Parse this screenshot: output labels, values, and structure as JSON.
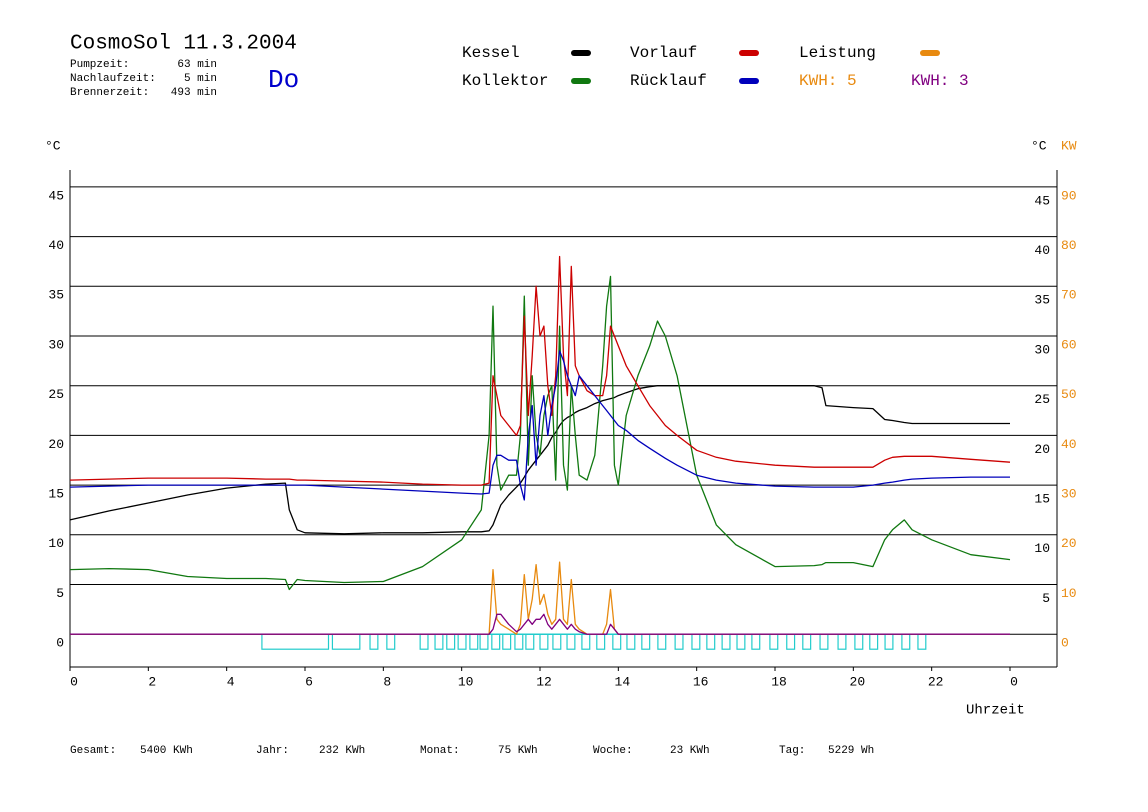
{
  "chart_data": {
    "type": "line",
    "title": "CosmoSol 11.3.2004",
    "info": [
      {
        "label": "Pumpzeit:",
        "value": "63 min"
      },
      {
        "label": "Nachlaufzeit:",
        "value": "5 min"
      },
      {
        "label": "Brennerzeit:",
        "value": "493 min"
      }
    ],
    "day": "Do",
    "y_unit": "°C",
    "y2_unit": "KW",
    "x_label": "Uhrzeit",
    "x": [
      0,
      1,
      2,
      3,
      4,
      5,
      5.5,
      5.6,
      5.8,
      6,
      7,
      8,
      9,
      10,
      10.5,
      10.7,
      10.8,
      10.9,
      11,
      11.2,
      11.4,
      11.5,
      11.6,
      11.7,
      11.8,
      11.9,
      12,
      12.1,
      12.2,
      12.3,
      12.4,
      12.5,
      12.6,
      12.7,
      12.8,
      12.9,
      13,
      13.2,
      13.4,
      13.6,
      13.7,
      13.8,
      13.9,
      14,
      14.2,
      14.5,
      14.8,
      15,
      15.2,
      15.5,
      16,
      16.5,
      17,
      18,
      19,
      19.2,
      19.3,
      20,
      20.5,
      20.8,
      21,
      21.3,
      21.5,
      22,
      23,
      24
    ],
    "xlim": [
      0,
      25.2
    ],
    "xticks": [
      0,
      2,
      4,
      6,
      8,
      10,
      12,
      14,
      16,
      18,
      20,
      22,
      {
        "value": 24,
        "label": "0"
      }
    ],
    "ylim": [
      -3.3,
      46.7
    ],
    "yticks": [
      0,
      5,
      10,
      15,
      20,
      25,
      30,
      35,
      40,
      45
    ],
    "y2lim": [
      -6.6,
      93.4
    ],
    "y2ticks": [
      0,
      10,
      20,
      30,
      40,
      50,
      60,
      70,
      80,
      90
    ],
    "grid": true,
    "series": [
      {
        "name": "Kessel",
        "color": "#000000",
        "values": [
          11.5,
          12.4,
          13.2,
          14,
          14.7,
          15.1,
          15.2,
          12.5,
          10.5,
          10.2,
          10.1,
          10.2,
          10.2,
          10.3,
          10.3,
          10.4,
          11,
          12,
          13,
          14,
          14.8,
          15.2,
          15.8,
          16.5,
          17,
          17.5,
          18,
          18.5,
          19,
          19.8,
          20.3,
          21,
          21.5,
          21.8,
          22,
          22.3,
          22.5,
          22.8,
          23.2,
          23.5,
          23.6,
          23.7,
          23.8,
          24,
          24.3,
          24.7,
          24.9,
          25,
          25,
          25,
          25,
          25,
          25,
          25,
          25,
          24.8,
          23,
          22.8,
          22.7,
          21.6,
          21.5,
          21.3,
          21.2,
          21.2,
          21.2,
          21.2
        ]
      },
      {
        "name": "Kollektor",
        "color": "#107810",
        "values": [
          6.5,
          6.6,
          6.5,
          5.8,
          5.6,
          5.6,
          5.5,
          4.5,
          5.5,
          5.4,
          5.2,
          5.3,
          6.8,
          9.5,
          12.5,
          20,
          33,
          17,
          14.5,
          16,
          16,
          20,
          34,
          17,
          26,
          20,
          18,
          22,
          24,
          25,
          15.5,
          31,
          17,
          14.5,
          25,
          20,
          16,
          15.5,
          18,
          27,
          33,
          36,
          17,
          15,
          22,
          26,
          29,
          31.5,
          30,
          26,
          16,
          11,
          9,
          6.8,
          6.9,
          7,
          7.2,
          7.2,
          6.8,
          9.5,
          10.5,
          11.5,
          10.5,
          9.5,
          8,
          7.5
        ]
      },
      {
        "name": "Vorlauf",
        "color": "#cc0000",
        "values": [
          15.5,
          15.6,
          15.7,
          15.7,
          15.7,
          15.6,
          15.6,
          15.6,
          15.5,
          15.5,
          15.4,
          15.3,
          15.1,
          15,
          15,
          15.2,
          26,
          24,
          22,
          21,
          20,
          21,
          32,
          22,
          28,
          35,
          30,
          31,
          25,
          22,
          26,
          38,
          28,
          24,
          37,
          27,
          26,
          24.5,
          24,
          24,
          26,
          31,
          30,
          29,
          27,
          25,
          23,
          22,
          21,
          20,
          18.5,
          17.8,
          17.4,
          17,
          16.8,
          16.8,
          16.8,
          16.8,
          16.8,
          17.5,
          17.8,
          17.9,
          17.9,
          17.9,
          17.6,
          17.3
        ]
      },
      {
        "name": "Rücklauf",
        "color": "#0000bb",
        "values": [
          14.8,
          14.9,
          15,
          15,
          15,
          15,
          15,
          15,
          15,
          15,
          14.8,
          14.6,
          14.4,
          14.2,
          14.1,
          14.2,
          17,
          18,
          18,
          17.5,
          17.5,
          15,
          13.5,
          20,
          23,
          17,
          22,
          24,
          20,
          23,
          25,
          28.5,
          27.5,
          26,
          25,
          24,
          26,
          25,
          24,
          23,
          22.5,
          22,
          21.5,
          21,
          20.5,
          19.5,
          18.7,
          18.2,
          17.7,
          17,
          16,
          15.5,
          15.2,
          14.9,
          14.8,
          14.8,
          14.8,
          14.8,
          15,
          15.2,
          15.3,
          15.5,
          15.6,
          15.7,
          15.8,
          15.8
        ]
      },
      {
        "name": "Leistung",
        "color": "#e88a10",
        "axis": "y2",
        "values": [
          0,
          0,
          0,
          0,
          0,
          0,
          0,
          0,
          0,
          0,
          0,
          0,
          0,
          0,
          0,
          0,
          13,
          3,
          2,
          1,
          0,
          2,
          12,
          3,
          7,
          14,
          6,
          8,
          4,
          2,
          3,
          14.5,
          3,
          2,
          11,
          2,
          1,
          0,
          0,
          0,
          2,
          9,
          1,
          0,
          0,
          0,
          0,
          0,
          0,
          0,
          0,
          0,
          0,
          0,
          0,
          0,
          0,
          0,
          0,
          0,
          0,
          0,
          0,
          0,
          0,
          0
        ]
      },
      {
        "color": "#800080",
        "axis": "y2",
        "values": [
          0,
          0,
          0,
          0,
          0,
          0,
          0,
          0,
          0,
          0,
          0,
          0,
          0,
          0,
          0,
          0,
          1,
          4,
          4,
          2,
          0.5,
          1,
          2,
          3,
          2,
          3,
          3,
          4,
          2,
          1,
          2,
          3,
          2,
          1,
          2,
          1,
          0.5,
          0,
          0,
          0,
          0,
          2,
          1,
          0,
          0,
          0,
          0,
          0,
          0,
          0,
          0,
          0,
          0,
          0,
          0,
          0,
          0,
          0,
          0,
          0,
          0,
          0,
          0,
          0,
          0,
          0
        ]
      }
    ],
    "legend_notes": [
      {
        "text": "KWH: 5",
        "color": "#e88a10"
      },
      {
        "text": "KWH: 3",
        "color": "#800080"
      }
    ],
    "burner": {
      "color": "#22cccc",
      "periods": [
        [
          4.9,
          6.6
        ],
        [
          6.7,
          7.4
        ],
        [
          7.66,
          7.86
        ],
        [
          8.09,
          8.29
        ],
        [
          8.94,
          9.14
        ],
        [
          9.32,
          9.52
        ],
        [
          9.62,
          9.82
        ],
        [
          9.91,
          10.11
        ],
        [
          10.21,
          10.41
        ],
        [
          10.47,
          10.67
        ],
        [
          10.77,
          10.97
        ],
        [
          11.05,
          11.25
        ],
        [
          11.36,
          11.56
        ],
        [
          11.64,
          11.84
        ],
        [
          12.0,
          12.2
        ],
        [
          12.33,
          12.53
        ],
        [
          12.69,
          12.89
        ],
        [
          13.07,
          13.27
        ],
        [
          13.45,
          13.65
        ],
        [
          13.86,
          14.06
        ],
        [
          14.22,
          14.42
        ],
        [
          14.6,
          14.8
        ],
        [
          15.01,
          15.21
        ],
        [
          15.45,
          15.65
        ],
        [
          15.88,
          16.08
        ],
        [
          16.26,
          16.46
        ],
        [
          16.65,
          16.85
        ],
        [
          17.03,
          17.23
        ],
        [
          17.41,
          17.61
        ],
        [
          17.87,
          18.07
        ],
        [
          18.3,
          18.5
        ],
        [
          18.71,
          18.91
        ],
        [
          19.15,
          19.35
        ],
        [
          19.61,
          19.81
        ],
        [
          20.04,
          20.24
        ],
        [
          20.42,
          20.62
        ],
        [
          20.81,
          21.01
        ],
        [
          21.24,
          21.44
        ],
        [
          21.65,
          21.85
        ]
      ]
    },
    "footer": [
      {
        "label": "Gesamt:",
        "value": "5400 KWh"
      },
      {
        "label": "Jahr:",
        "value": "232 KWh"
      },
      {
        "label": "Monat:",
        "value": "75 KWh"
      },
      {
        "label": "Woche:",
        "value": "23 KWh"
      },
      {
        "label": "Tag:",
        "value": "5229 Wh"
      }
    ]
  }
}
